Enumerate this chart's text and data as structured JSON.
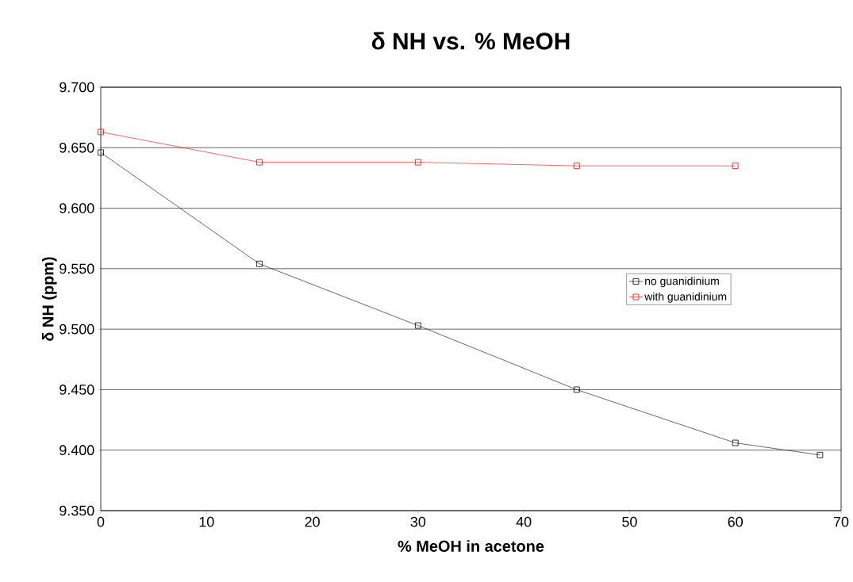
{
  "chart_data": {
    "type": "line",
    "title": "δ NH vs. % MeOH",
    "xlabel": "% MeOH in acetone",
    "ylabel": "δ NH (ppm)",
    "xlim": [
      0,
      70
    ],
    "xticks": [
      0,
      10,
      20,
      30,
      40,
      50,
      60,
      70
    ],
    "ylim": [
      9.35,
      9.7
    ],
    "yticks": [
      {
        "value": 9.35,
        "label": "9.350"
      },
      {
        "value": 9.4,
        "label": "9.400"
      },
      {
        "value": 9.45,
        "label": "9.450"
      },
      {
        "value": 9.5,
        "label": "9.500"
      },
      {
        "value": 9.55,
        "label": "9.550"
      },
      {
        "value": 9.6,
        "label": "9.600"
      },
      {
        "value": 9.65,
        "label": "9.650"
      },
      {
        "value": 9.7,
        "label": "9.700"
      }
    ],
    "grid": "y",
    "legend": "right",
    "marker": "square",
    "line_style": "solid",
    "series": [
      {
        "name": "no guanidinium",
        "color": "#000000",
        "x": [
          0,
          15,
          30,
          45,
          60,
          68
        ],
        "values": [
          9.646,
          9.554,
          9.503,
          9.45,
          9.406,
          9.396
        ]
      },
      {
        "name": "with guanidinium",
        "color": "#ff0000",
        "x": [
          0,
          15,
          30,
          45,
          60
        ],
        "values": [
          9.663,
          9.638,
          9.638,
          9.635,
          9.635
        ]
      }
    ]
  }
}
